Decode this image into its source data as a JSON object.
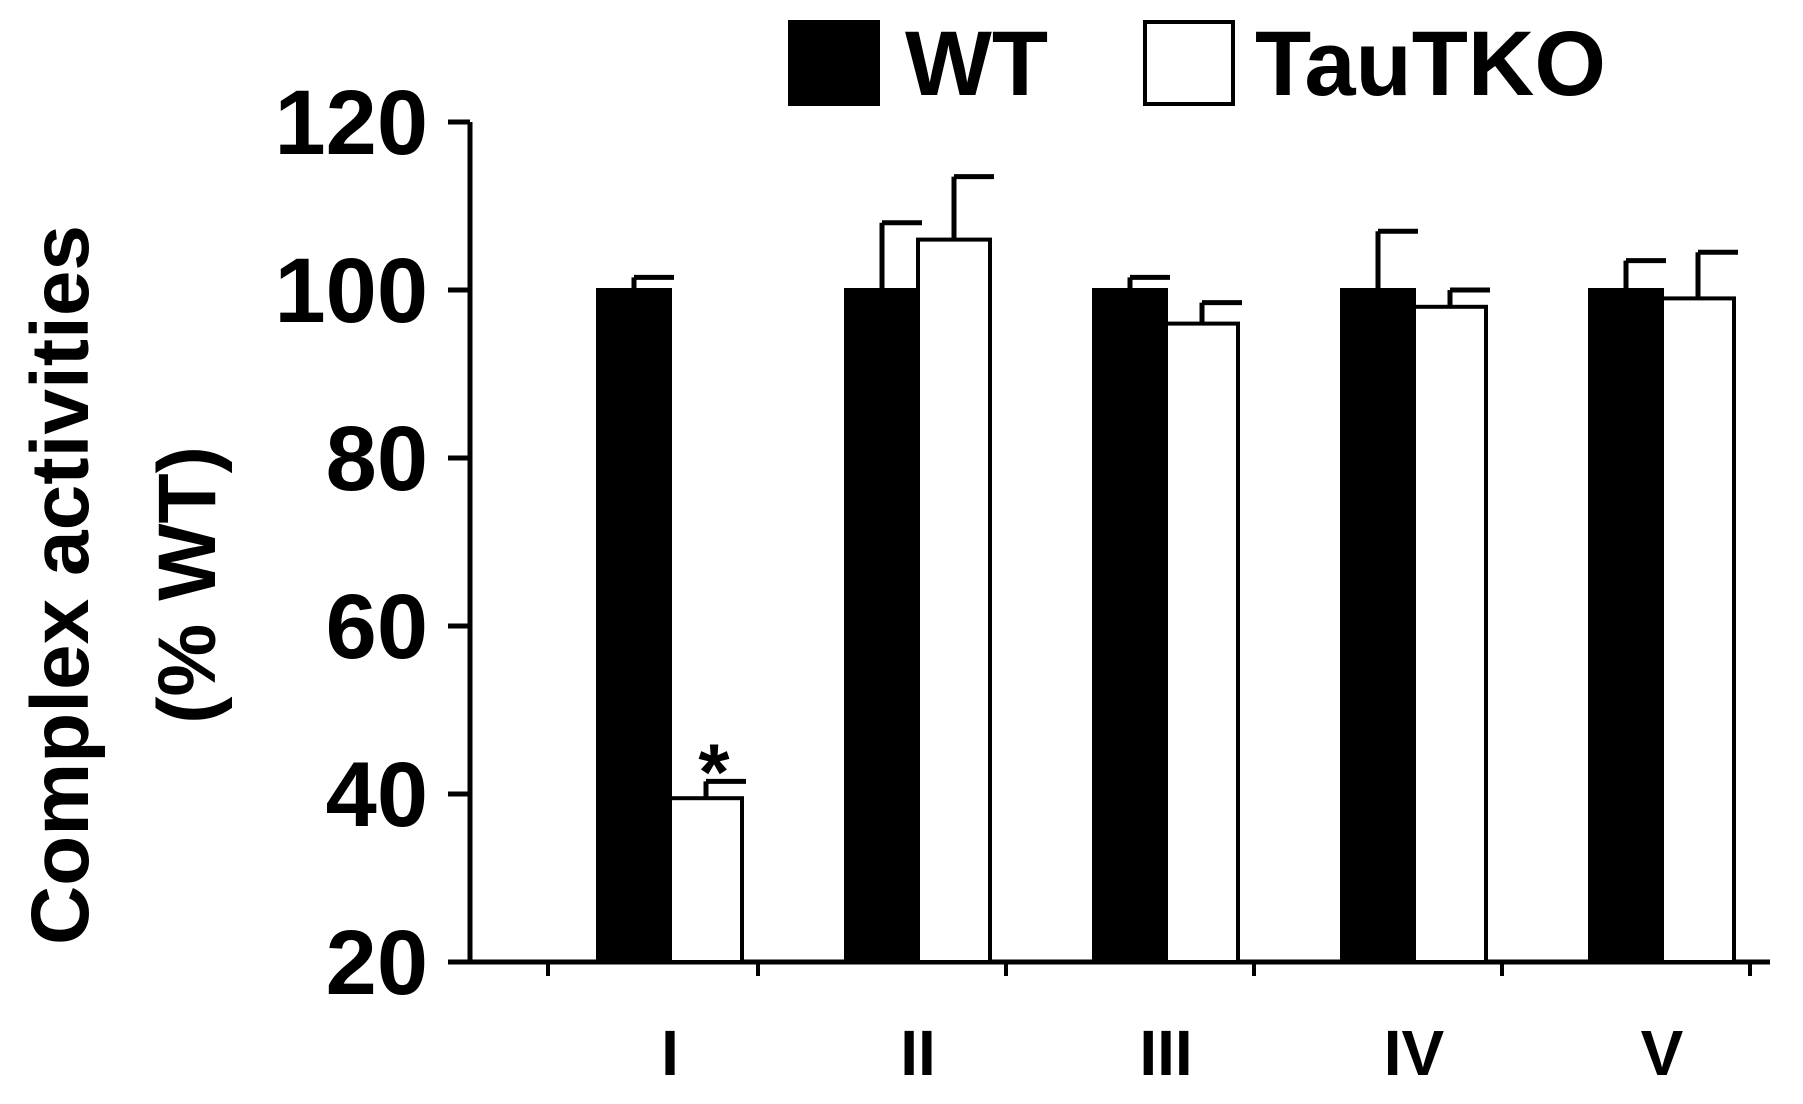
{
  "chart_data": {
    "type": "bar",
    "title": "",
    "xlabel": "",
    "ylabel": "Complex activities",
    "ylabel_unit": "(% WT)",
    "ylim": [
      20,
      120
    ],
    "yticks": [
      20,
      40,
      60,
      80,
      100,
      120
    ],
    "categories": [
      "I",
      "II",
      "III",
      "IV",
      "V"
    ],
    "legend_position": "top",
    "grid": false,
    "series": [
      {
        "name": "WT",
        "color": "#000000",
        "fill": "filled",
        "values": [
          100,
          100,
          100,
          100,
          100
        ],
        "errors": [
          1.5,
          8,
          1.5,
          7,
          3.5
        ]
      },
      {
        "name": "TauTKO",
        "color": "#000000",
        "fill": "open",
        "values": [
          39.5,
          106,
          96,
          98,
          99
        ],
        "errors": [
          2,
          7.5,
          2.5,
          2,
          5.5
        ]
      }
    ],
    "annotations": [
      {
        "text": "*",
        "category": "I",
        "series": "TauTKO"
      }
    ]
  }
}
